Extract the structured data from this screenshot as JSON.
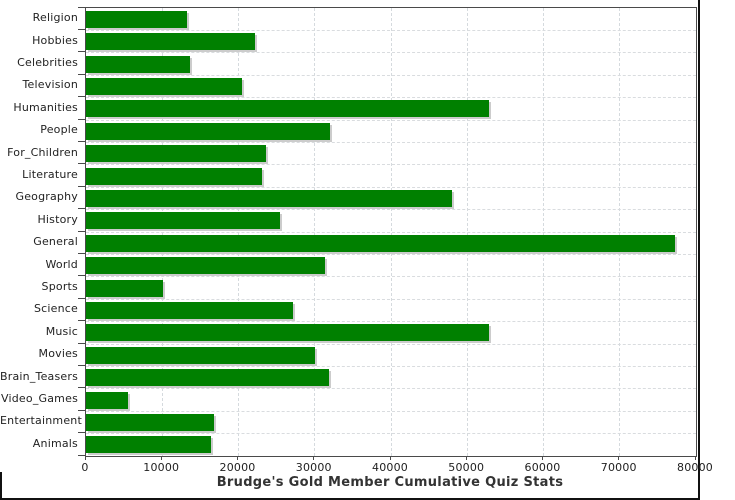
{
  "chart_data": {
    "type": "bar",
    "orientation": "horizontal",
    "title": "Brudge's Gold Member Cumulative Quiz Stats",
    "xlabel": "",
    "ylabel": "",
    "categories": [
      "Religion",
      "Hobbies",
      "Celebrities",
      "Television",
      "Humanities",
      "People",
      "For_Children",
      "Literature",
      "Geography",
      "History",
      "General",
      "World",
      "Sports",
      "Science",
      "Music",
      "Movies",
      "Brain_Teasers",
      "Video_Games",
      "Entertainment",
      "Animals"
    ],
    "values": [
      13200,
      22200,
      13700,
      20400,
      52800,
      32000,
      23600,
      23100,
      48000,
      25400,
      77200,
      31400,
      10100,
      27100,
      52900,
      30000,
      31900,
      5500,
      16800,
      16400
    ],
    "xlim": [
      0,
      80000
    ],
    "xticks": [
      0,
      10000,
      20000,
      30000,
      40000,
      50000,
      60000,
      70000,
      80000
    ],
    "grid": true,
    "legend": "none",
    "colors": {
      "bar": "#008000",
      "bar_shadow": "#cccccc",
      "gridline": "#d5dade",
      "axis_frame": "#4a4a4a",
      "text": "#222222",
      "title_text": "#333333",
      "background": "#ffffff"
    }
  }
}
